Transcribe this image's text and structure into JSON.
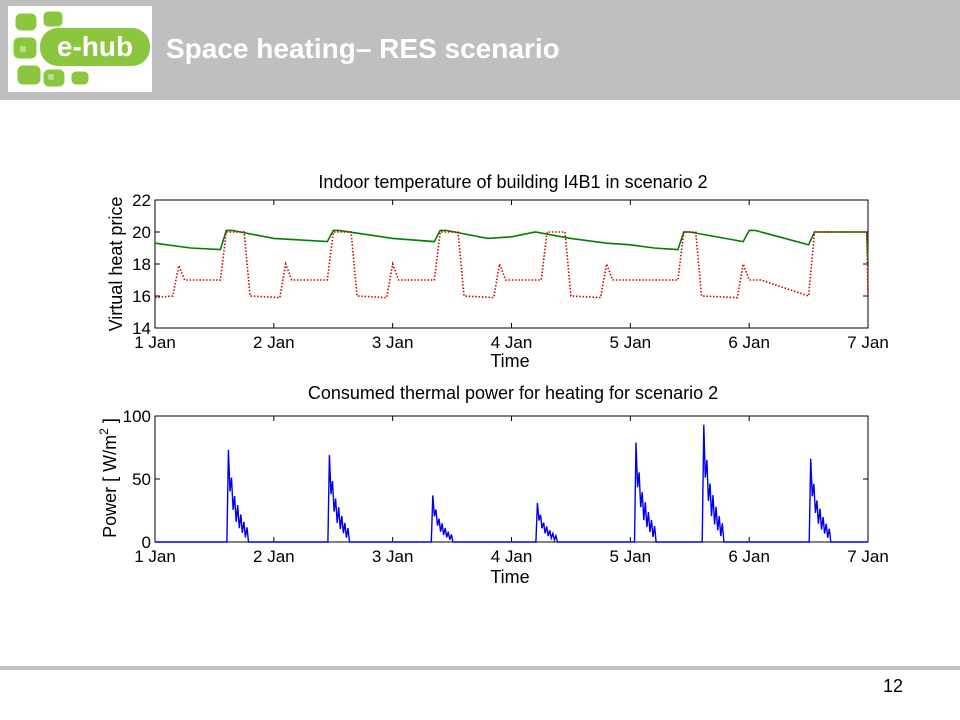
{
  "slide": {
    "title": "Space heating– RES scenario",
    "page_number": "12",
    "logo_text": "e-hub",
    "header_color": "#bfbfbf"
  },
  "chart_data": [
    {
      "type": "line",
      "title": "Indoor temperature of building I4B1 in scenario 2",
      "xlabel": "Time",
      "ylabel": "Virtual heat price",
      "x_tick_labels": [
        "1 Jan",
        "2 Jan",
        "3 Jan",
        "4 Jan",
        "5 Jan",
        "6 Jan",
        "7 Jan"
      ],
      "xlim": [
        0,
        6
      ],
      "ylim": [
        14,
        22
      ],
      "y_ticks": [
        14,
        16,
        18,
        20,
        22
      ],
      "grid": false,
      "legend": false,
      "series": [
        {
          "color": "#008000",
          "style": "solid",
          "x": [
            0,
            0.3,
            0.55,
            0.6,
            0.65,
            1.0,
            1.45,
            1.5,
            1.55,
            2.0,
            2.35,
            2.4,
            2.45,
            2.8,
            3.0,
            3.2,
            3.5,
            3.8,
            4.0,
            4.2,
            4.4,
            4.45,
            4.5,
            4.95,
            5.0,
            5.05,
            5.5,
            5.55,
            5.6,
            5.99,
            6.0
          ],
          "values": [
            19.3,
            19.0,
            18.9,
            20.1,
            20.1,
            19.6,
            19.4,
            20.1,
            20.1,
            19.6,
            19.4,
            20.1,
            20.1,
            19.6,
            19.7,
            20.0,
            19.6,
            19.3,
            19.2,
            19.0,
            18.9,
            20.0,
            20.0,
            19.4,
            20.1,
            20.1,
            19.2,
            20.0,
            20.0,
            20.0,
            18.0
          ]
        },
        {
          "color": "#cc0000",
          "style": "dotted",
          "x": [
            0,
            0.15,
            0.2,
            0.25,
            0.3,
            0.35,
            0.55,
            0.6,
            0.7,
            0.75,
            0.8,
            1.05,
            1.1,
            1.15,
            1.2,
            1.25,
            1.45,
            1.5,
            1.6,
            1.65,
            1.7,
            1.95,
            2.0,
            2.05,
            2.1,
            2.15,
            2.35,
            2.4,
            2.5,
            2.55,
            2.6,
            2.85,
            2.9,
            2.95,
            3.0,
            3.05,
            3.25,
            3.3,
            3.4,
            3.45,
            3.5,
            3.75,
            3.8,
            3.85,
            3.9,
            3.95,
            4.4,
            4.45,
            4.5,
            4.55,
            4.6,
            4.9,
            4.95,
            5.0,
            5.05,
            5.1,
            5.5,
            5.55,
            5.6,
            5.99,
            6.0
          ],
          "values": [
            15.9,
            16.0,
            17.9,
            17.0,
            17.0,
            17.0,
            17.0,
            20.0,
            20.0,
            20.0,
            16.0,
            15.9,
            18.0,
            17.0,
            17.0,
            17.0,
            17.0,
            20.0,
            20.0,
            20.0,
            16.0,
            15.9,
            18.0,
            17.0,
            17.0,
            17.0,
            17.0,
            20.0,
            20.0,
            20.0,
            16.0,
            15.9,
            18.0,
            17.0,
            17.0,
            17.0,
            17.0,
            20.0,
            20.0,
            20.0,
            16.0,
            15.9,
            18.0,
            17.0,
            17.0,
            17.0,
            17.0,
            20.0,
            20.0,
            20.0,
            16.0,
            15.9,
            18.0,
            17.0,
            17.0,
            17.0,
            16.0,
            20.0,
            20.0,
            20.0,
            15.9
          ]
        }
      ]
    },
    {
      "type": "line",
      "title": "Consumed thermal power for heating for scenario 2",
      "xlabel": "Time",
      "ylabel": "Power [ W/m",
      "ylabel_superscript": "2",
      "ylabel_suffix": " ]",
      "x_tick_labels": [
        "1 Jan",
        "2 Jan",
        "3 Jan",
        "4 Jan",
        "5 Jan",
        "6 Jan",
        "7 Jan"
      ],
      "xlim": [
        0,
        6
      ],
      "ylim": [
        0,
        100
      ],
      "y_ticks": [
        0,
        50,
        100
      ],
      "grid": false,
      "legend": false,
      "series": [
        {
          "color": "#0000ee",
          "style": "solid",
          "bursts": [
            {
              "start": 0.6,
              "peak": 73
            },
            {
              "start": 1.45,
              "peak": 69
            },
            {
              "start": 2.32,
              "peak": 37
            },
            {
              "start": 3.2,
              "peak": 31
            },
            {
              "start": 4.03,
              "peak": 79
            },
            {
              "start": 4.6,
              "peak": 93
            },
            {
              "start": 5.5,
              "peak": 66
            }
          ]
        }
      ]
    }
  ]
}
